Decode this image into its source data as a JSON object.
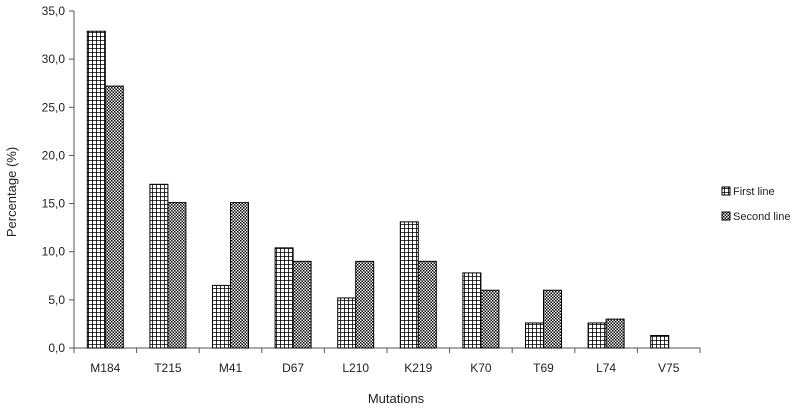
{
  "chart_data": {
    "type": "bar",
    "xlabel": "Mutations",
    "ylabel": "Percentage (%)",
    "ylim": [
      0,
      35
    ],
    "yticks": [
      "0,0",
      "5,0",
      "10,0",
      "15,0",
      "20,0",
      "25,0",
      "30,0",
      "35,0"
    ],
    "ytick_values": [
      0,
      5,
      10,
      15,
      20,
      25,
      30,
      35
    ],
    "grid": false,
    "legend_position": "right",
    "categories": [
      "M184",
      "T215",
      "M41",
      "D67",
      "L210",
      "K219",
      "K70",
      "T69",
      "L74",
      "V75"
    ],
    "series": [
      {
        "name": "First line",
        "pattern": "grid",
        "values": [
          32.9,
          17.0,
          6.5,
          10.4,
          5.2,
          13.1,
          7.8,
          2.6,
          2.6,
          1.3
        ]
      },
      {
        "name": "Second line",
        "pattern": "dense-check",
        "values": [
          27.2,
          15.1,
          15.1,
          9.0,
          9.0,
          9.0,
          6.0,
          6.0,
          3.0,
          0
        ]
      }
    ],
    "colors": {
      "bar_stroke": "#000000",
      "axis": "#555555",
      "text": "#222222"
    }
  }
}
